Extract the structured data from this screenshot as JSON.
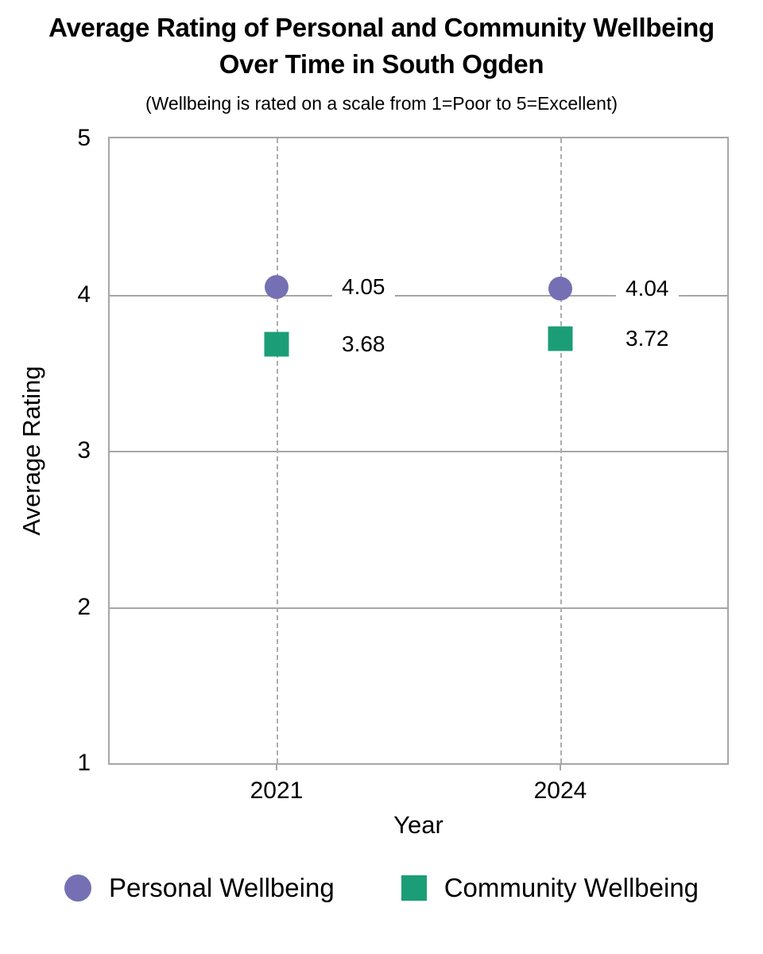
{
  "chart_data": {
    "type": "scatter",
    "title": "Average Rating of Personal and Community Wellbeing Over Time in South Ogden",
    "subtitle": "(Wellbeing is rated on a scale from 1=Poor to 5=Excellent)",
    "xlabel": "Year",
    "ylabel": "Average Rating",
    "categories": [
      "2021",
      "2024"
    ],
    "series": [
      {
        "name": "Personal Wellbeing",
        "marker": "circle",
        "color": "#7570B3",
        "values": [
          4.05,
          4.04
        ],
        "value_labels": [
          "4.05",
          "4.04"
        ]
      },
      {
        "name": "Community Wellbeing",
        "marker": "square",
        "color": "#1B9E77",
        "values": [
          3.68,
          3.72
        ],
        "value_labels": [
          "3.68",
          "3.72"
        ]
      }
    ],
    "ylim": [
      1,
      5
    ],
    "yticks": [
      5,
      4,
      3,
      2,
      1
    ],
    "grid": {
      "horizontal": "solid",
      "vertical": "dashed-at-categories"
    },
    "legend_position": "bottom",
    "colors": {
      "gridline": "#A6A6A6",
      "dashed_gridline": "#ADADAD",
      "text": "#000000",
      "background": "#FFFFFF"
    }
  }
}
